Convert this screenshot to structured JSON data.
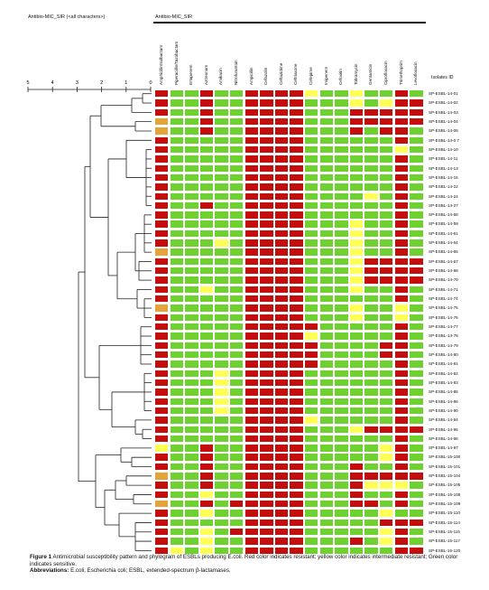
{
  "header": {
    "left_title": "Antibio-MIC_SIR (<all characters>)",
    "right_title": "Antibio-MIC_SIR",
    "isolates_header": "Isolates ID"
  },
  "colors": {
    "R": "#c40d0d",
    "I": "#ffff55",
    "S": "#6ed12f",
    "O": "#e3a53a"
  },
  "scale": {
    "ticks": [
      "5",
      "4",
      "3",
      "2",
      "1",
      "0"
    ]
  },
  "antibiotics": [
    "Amphicillin/sulbactam",
    "Piperacillin/Tazobactam",
    "Ertapenem",
    "Aztreonam",
    "Amikacin",
    "Nitrofurantoin",
    "Ampicillin",
    "Cefazolin",
    "Ceftazidime",
    "Ceftriaxone",
    "Cefepime",
    "Imipenem",
    "Cefoxitin",
    "Tobramycin",
    "Gentamicin",
    "Ciprofloxacin",
    "Trimethoprim",
    "Levofloxacin"
  ],
  "isolates": [
    "SP-ESBL-14-01",
    "SP-ESBL-14-02",
    "SP-ESBL-14-03",
    "SP-ESBL-14-04",
    "SP-ESBL-14-06",
    "SP-ESBL-14-0 7",
    "SP-ESBL-14-10",
    "SP-ESBL-14-11",
    "SP-ESBL-14-13",
    "SP-ESBL-14-15",
    "SP-ESBL-14-22",
    "SP-ESBL-14-24",
    "SP-ESBL-14-27",
    "SP-ESBL-14-58",
    "SP-ESBL-14-59",
    "SP-ESBL-14-61",
    "SP-ESBL-14-64",
    "SP-ESBL-14-65",
    "SP-ESBL-14-67",
    "SP-ESBL-14-68",
    "SP-ESBL-14-70",
    "SP-ESBL-14-71",
    "SP-ESBL-14-74",
    "SP-ESBL-14-75",
    "SP-ESBL-14-76",
    "SP-ESBL-14-77",
    "SP-ESBL-14-78",
    "SP-ESBL-14-79",
    "SP-ESBL-14-80",
    "SP-ESBL-14-81",
    "SP-ESBL-14-82",
    "SP-ESBL-14-83",
    "SP-ESBL-14-85",
    "SP-ESBL-14-86",
    "SP-ESBL-14-90",
    "SP-ESBL-14-94",
    "SP-ESBL-14-95",
    "SP-ESBL-14-96",
    "SP-ESBL-14-97",
    "SP-ESBL-15-100",
    "SP-ESBL-15-101",
    "SP-ESBL-15-104",
    "SP-ESBL-15-105",
    "SP-ESBL-15-108",
    "SP-ESBL-15-109",
    "SP-ESBL-15-110",
    "SP-ESBL-15-114",
    "SP-ESBL-15-115",
    "SP-ESBL-15-117",
    "SP-ESBL-15-120"
  ],
  "heatmap_rows": [
    "RSSRSSRRRRISSISSRS",
    "RSSRSSRRRRSSSISIRR",
    "RSSRSSRRRRSSSRRRRR",
    "OSSRSSRRRRSSSRRRRR",
    "OSSRSSRRRRSSSRSRRS",
    "RSSSSSRRRRSSSSSSRS",
    "RSSSSSRRRRSSSSSSIS",
    "RSSSSSRRRRSSSSSSRS",
    "RSSSSSRRRRSSSSSSRS",
    "RSSSSSRRRRSSSSSSRS",
    "RSSSSSRRRRSSSSSSRS",
    "RSSSSSRRRRSSSSISRS",
    "RSSRSSRRRRSSSSSSRS",
    "RSSSSSRRRRSSSSSSRS",
    "RSSSSSRRRRSSSISSRS",
    "RSSSSSRRRRSSSISSRS",
    "RSSSISRRRRSSSISSRS",
    "OSSSSSRRRRSSSISSRS",
    "RSSSSSRRRRSSSIRRRR",
    "RSSSSSRRRRSSSIRRRR",
    "RSSSSSRRRRSSSIRRRR",
    "RSSISSRRRRSSSISSRS",
    "RSSSSSRRRRSSSSSSRS",
    "OSSSSSRRRRSSSISSIS",
    "RSSSSSRRRRSSSISSIS",
    "RSSSSSRRRRRSSSSSRS",
    "RSSSSSRRRRISSSSSRS",
    "RSSSSSRRRRRSSSSRRS",
    "RSSSSSRRRRRSSSSRRS",
    "RSSSSSRRRRRSSSSSRS",
    "RSSSISRRRRSSSSSSRS",
    "RSSSISRRRRSSSSSSRS",
    "RSSSISRRRRSSSSSSRS",
    "RSSSISRRRRSSSSSSRS",
    "RSSSISRRRRSSSSSSRS",
    "RSSSSSRRRRISSSSSRS",
    "RSSSSSRRRRSSSIRRRR",
    "RSSSSSRRRRSSSSSSRS",
    "ISSRSSRRRRSSSSSIRS",
    "RSSRSSRRRRSSSSSIRS",
    "RSSRSSRRRRSSSRSSRS",
    "OSSRSSRRRRSSSRRRRR",
    "RSSRSSRRRRSSSRIIIS",
    "RSSISSRRRRSSSRSSRS",
    "OSSRSRRRRRSSSRRSRS",
    "RSSISSRRRRSSSSSISS",
    "RSSSSSRRRRSSSSSRRR",
    "RSSISRRRRRSSSSSIRS",
    "RSSISSRRRRSSSRSIRS",
    "RISISSRRRRSSSSSSRR"
  ],
  "caption": {
    "figure_label": "Figure 1",
    "text": "Antimicrobial susceptibility pattern and phylogram of ESBLs producing E.coli. Red color indicates resistant; yellow color indicates intermediate resistant; Green color indicates sensitive.",
    "abbrev_label": "Abbreviations:",
    "abbrev_text": "E.coli, Escherichia coli; ESBL, extended-spectrum β-lactamases."
  }
}
